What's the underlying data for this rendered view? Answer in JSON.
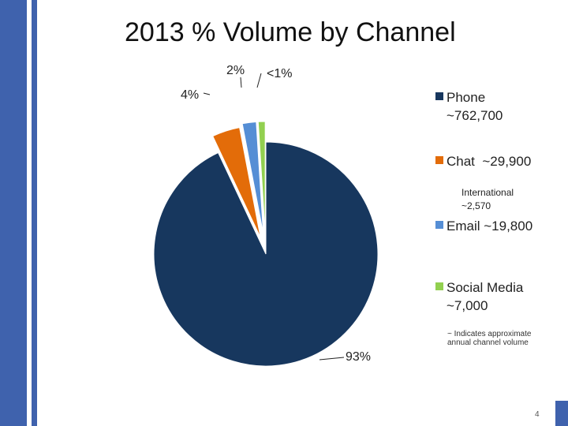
{
  "slide": {
    "page_number": "4"
  },
  "chart_data": {
    "type": "pie",
    "title": "2013 % Volume by Channel",
    "slices": [
      {
        "name": "Phone",
        "volume": "~762,700",
        "value": 93,
        "label": "93%",
        "color": "#17375e"
      },
      {
        "name": "Chat",
        "volume": "~29,900",
        "value": 4,
        "label": "4%",
        "color": "#e36c09"
      },
      {
        "name": "Email",
        "volume": "~19,800",
        "value": 2,
        "label": "2%",
        "color": "#558ed5"
      },
      {
        "name": "Social Media",
        "volume": "~7,000",
        "value": 1,
        "label": "<1%",
        "color": "#92d050"
      }
    ],
    "international_note": {
      "line1": "International",
      "line2": "~2,570"
    },
    "footnote": "~ Indicates approximate annual channel volume",
    "legend_position": "right"
  }
}
